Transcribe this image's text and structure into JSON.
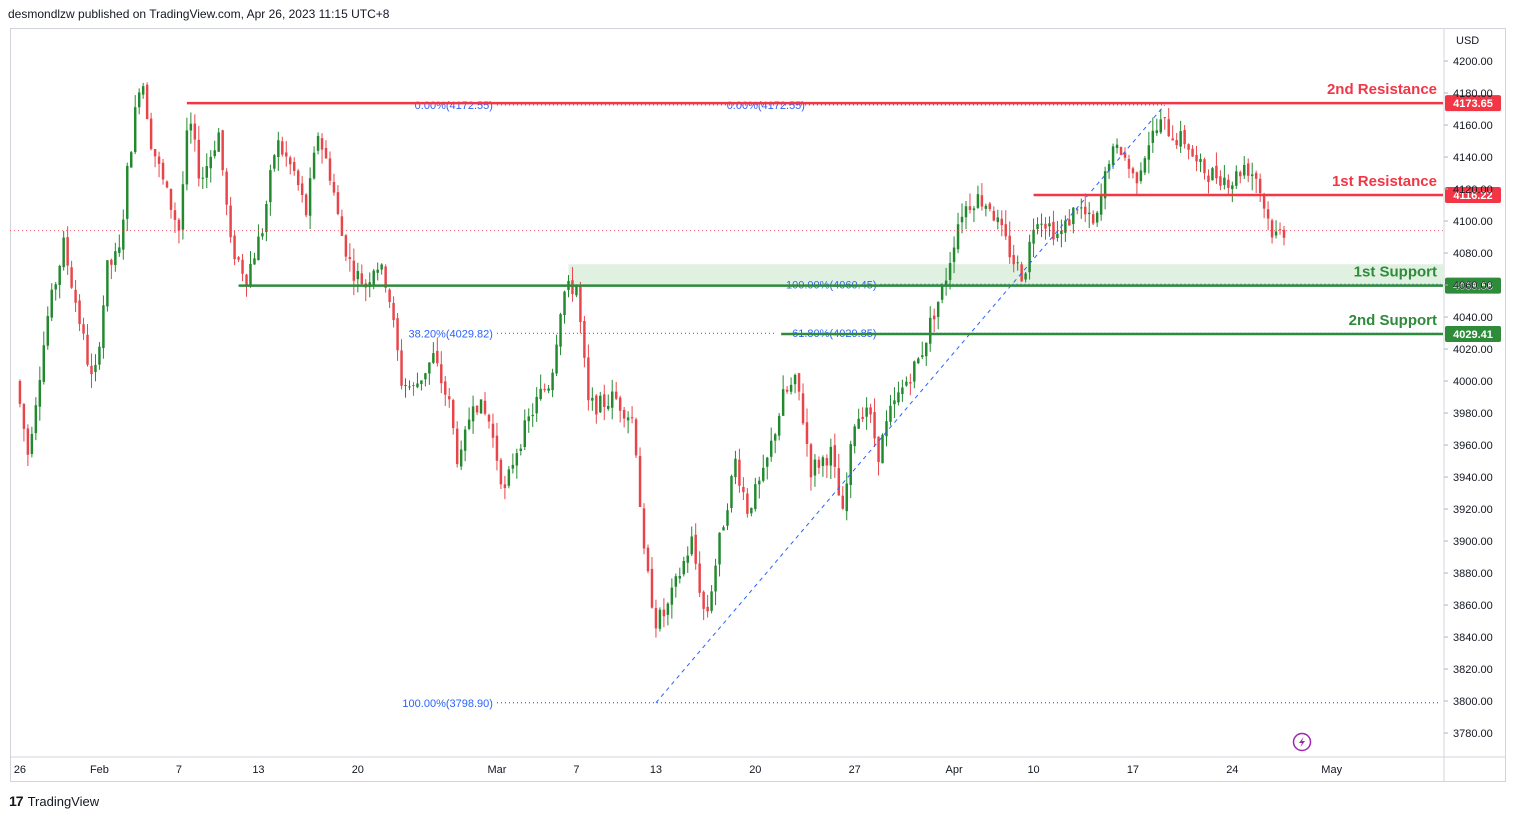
{
  "header": {
    "text": "desmondlzw published on TradingView.com, Apr 26, 2023 11:15 UTC+8"
  },
  "footer": {
    "logo_text": "TradingView",
    "logo_mark": "17"
  },
  "colors": {
    "up": "#22892f",
    "down": "#e8454a",
    "resistance": "#f23645",
    "support": "#2e8b3a",
    "fib": "#2962ff",
    "zone": "#c8e6c9",
    "lightning": "#9c27b0"
  },
  "chart_data": {
    "type": "candlestick",
    "currency": "USD",
    "ylim": [
      3765,
      4220
    ],
    "y_ticks": [
      3780,
      3800,
      3820,
      3840,
      3860,
      3880,
      3900,
      3920,
      3940,
      3960,
      3980,
      4000,
      4020,
      4040,
      4060,
      4080,
      4100,
      4120,
      4140,
      4160,
      4180,
      4200
    ],
    "x_ticks": [
      {
        "label": "26",
        "t": 0
      },
      {
        "label": "Feb",
        "t": 4
      },
      {
        "label": "7",
        "t": 8
      },
      {
        "label": "13",
        "t": 12
      },
      {
        "label": "20",
        "t": 17
      },
      {
        "label": "Mar",
        "t": 24
      },
      {
        "label": "7",
        "t": 28
      },
      {
        "label": "13",
        "t": 32
      },
      {
        "label": "20",
        "t": 37
      },
      {
        "label": "27",
        "t": 42
      },
      {
        "label": "Apr",
        "t": 47
      },
      {
        "label": "10",
        "t": 51
      },
      {
        "label": "17",
        "t": 56
      },
      {
        "label": "24",
        "t": 61
      },
      {
        "label": "May",
        "t": 66
      }
    ],
    "x_range": [
      -0.5,
      71.6
    ],
    "last_price": 4094,
    "price_path": [
      [
        0,
        4000
      ],
      [
        0.6,
        3955
      ],
      [
        1.6,
        4040
      ],
      [
        2.4,
        4085
      ],
      [
        3.0,
        4050
      ],
      [
        3.9,
        3995
      ],
      [
        4.6,
        4070
      ],
      [
        5.2,
        4080
      ],
      [
        5.6,
        4130
      ],
      [
        6.3,
        4195
      ],
      [
        6.8,
        4150
      ],
      [
        7.5,
        4120
      ],
      [
        8.2,
        4095
      ],
      [
        8.7,
        4165
      ],
      [
        9.3,
        4125
      ],
      [
        10.2,
        4155
      ],
      [
        10.8,
        4085
      ],
      [
        11.6,
        4065
      ],
      [
        12.4,
        4095
      ],
      [
        13.1,
        4150
      ],
      [
        14.0,
        4130
      ],
      [
        14.6,
        4105
      ],
      [
        15.2,
        4155
      ],
      [
        15.9,
        4125
      ],
      [
        16.3,
        4095
      ],
      [
        16.9,
        4070
      ],
      [
        17.6,
        4060
      ],
      [
        18.1,
        4075
      ],
      [
        18.7,
        4060
      ],
      [
        19.4,
        4000
      ],
      [
        20.0,
        3995
      ],
      [
        21.0,
        4015
      ],
      [
        21.8,
        3985
      ],
      [
        22.3,
        3945
      ],
      [
        23.0,
        3990
      ],
      [
        23.8,
        3975
      ],
      [
        24.6,
        3930
      ],
      [
        25.1,
        3955
      ],
      [
        26.3,
        3990
      ],
      [
        26.9,
        4000
      ],
      [
        27.5,
        4055
      ],
      [
        28.2,
        4060
      ],
      [
        28.8,
        3985
      ],
      [
        29.4,
        3985
      ],
      [
        30.1,
        3990
      ],
      [
        31.1,
        3975
      ],
      [
        31.6,
        3890
      ],
      [
        32.2,
        3850
      ],
      [
        32.7,
        3855
      ],
      [
        33.4,
        3880
      ],
      [
        34.0,
        3900
      ],
      [
        34.7,
        3850
      ],
      [
        35.4,
        3900
      ],
      [
        36.2,
        3950
      ],
      [
        36.8,
        3920
      ],
      [
        37.6,
        3940
      ],
      [
        38.6,
        3990
      ],
      [
        39.3,
        4000
      ],
      [
        40.0,
        3945
      ],
      [
        41.0,
        3955
      ],
      [
        41.6,
        3915
      ],
      [
        42.2,
        3975
      ],
      [
        42.8,
        3985
      ],
      [
        43.4,
        3955
      ],
      [
        44.0,
        3980
      ],
      [
        44.8,
        4000
      ],
      [
        45.5,
        4015
      ],
      [
        46.1,
        4040
      ],
      [
        46.7,
        4060
      ],
      [
        47.5,
        4105
      ],
      [
        48.3,
        4115
      ],
      [
        49.0,
        4110
      ],
      [
        49.5,
        4095
      ],
      [
        50.2,
        4075
      ],
      [
        50.7,
        4065
      ],
      [
        51.3,
        4105
      ],
      [
        51.8,
        4100
      ],
      [
        52.5,
        4090
      ],
      [
        53.4,
        4110
      ],
      [
        54.3,
        4095
      ],
      [
        55.0,
        4140
      ],
      [
        55.6,
        4145
      ],
      [
        56.3,
        4125
      ],
      [
        57.0,
        4150
      ],
      [
        57.7,
        4162
      ],
      [
        58.3,
        4152
      ],
      [
        58.9,
        4150
      ],
      [
        59.4,
        4135
      ],
      [
        60.0,
        4130
      ],
      [
        60.6,
        4128
      ],
      [
        61.2,
        4125
      ],
      [
        61.8,
        4135
      ],
      [
        62.4,
        4128
      ],
      [
        62.9,
        4105
      ],
      [
        63.3,
        4090
      ],
      [
        63.7,
        4094
      ]
    ],
    "levels": [
      {
        "label": "2nd Resistance",
        "value": 4173.65,
        "price_text": "4173.65",
        "kind": "resistance",
        "t_start": 8.4
      },
      {
        "label": "1st Resistance",
        "value": 4116.22,
        "price_text": "4116.22",
        "kind": "resistance",
        "t_start": 51.0
      },
      {
        "label": "1st Support",
        "value": 4059.58,
        "price_text": "4059.58",
        "kind": "support",
        "t_start": 11.0
      },
      {
        "label": "2nd Support",
        "value": 4029.41,
        "price_text": "4029.41",
        "kind": "support",
        "t_start": 38.3
      }
    ],
    "support_zone": {
      "from": 4059.58,
      "to": 4073,
      "t_start": 27.6
    },
    "fib_labels": [
      {
        "text": "0.00%(4172.55)",
        "value": 4172.55,
        "t": 24.0,
        "dash_to": 48.5
      },
      {
        "text": "0.00%(4172.55)",
        "value": 4172.55,
        "t": 39.7,
        "dash_to": 57.6
      },
      {
        "text": "100.00%(4060.45)",
        "value": 4060.45,
        "t": 43.3,
        "dash_to": 71.5
      },
      {
        "text": "38.20%(4029.82)",
        "value": 4029.82,
        "t": 24.0,
        "dash_to": 38.0
      },
      {
        "text": "61.80%(4029.85)",
        "value": 4029.85,
        "t": 43.3,
        "dash_to": 71.5
      },
      {
        "text": "100.00%(3798.90)",
        "value": 3798.9,
        "t": 24.0,
        "dash_to": 71.5
      }
    ],
    "fib_trendlines": [
      [
        [
          32.0,
          3798.9
        ],
        [
          57.6,
          4172.55
        ]
      ]
    ]
  }
}
